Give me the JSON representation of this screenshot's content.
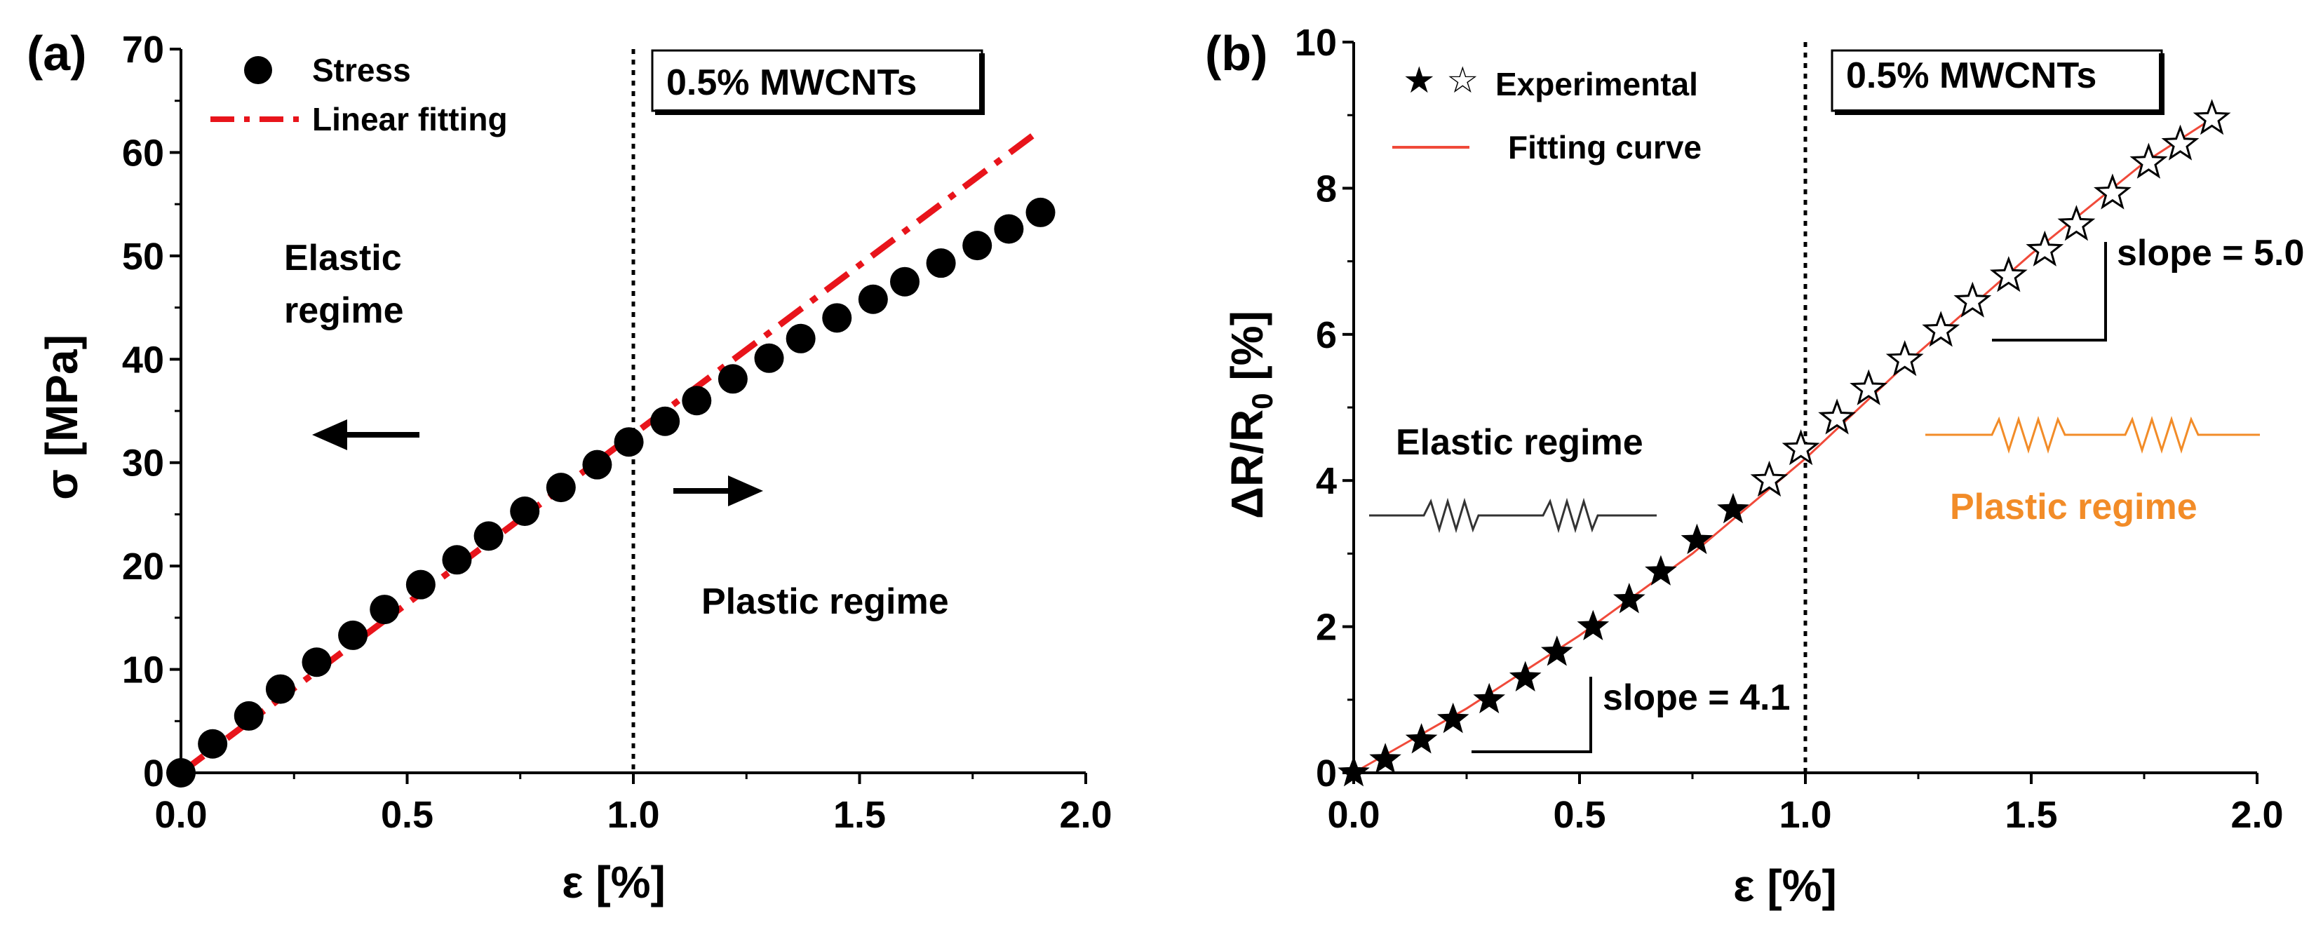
{
  "chart_data": [
    {
      "type": "scatter",
      "panel_label": "(a)",
      "box_label": "0.5% MWCNTs",
      "xlabel": "ε [%]",
      "ylabel": "σ [MPa]",
      "xlim": [
        0,
        2
      ],
      "ylim": [
        0,
        70
      ],
      "xticks": [
        "0.0",
        "0.5",
        "1.0",
        "1.5",
        "2.0"
      ],
      "yticks": [
        "0",
        "10",
        "20",
        "30",
        "40",
        "50",
        "60",
        "70"
      ],
      "divider_x": 1.0,
      "legend": [
        "Stress",
        "Linear fitting"
      ],
      "annotations": {
        "elastic_1": "Elastic",
        "elastic_2": "regime",
        "plastic": "Plastic regime"
      },
      "series": [
        {
          "name": "Stress",
          "x": [
            0.0,
            0.07,
            0.15,
            0.22,
            0.3,
            0.38,
            0.45,
            0.53,
            0.61,
            0.68,
            0.76,
            0.84,
            0.92,
            0.99,
            1.07,
            1.14,
            1.22,
            1.3,
            1.37,
            1.45,
            1.53,
            1.6,
            1.68,
            1.76,
            1.83,
            1.9
          ],
          "y": [
            0,
            2.8,
            5.5,
            8.1,
            10.7,
            13.3,
            15.8,
            18.2,
            20.6,
            22.9,
            25.3,
            27.6,
            29.8,
            32.0,
            34.0,
            36.0,
            38.1,
            40.1,
            42.0,
            44.0,
            45.8,
            47.5,
            49.3,
            51.0,
            52.6,
            54.2
          ]
        },
        {
          "name": "Linear fitting",
          "x": [
            0.0,
            1.9
          ],
          "y": [
            0,
            62.2
          ]
        }
      ],
      "colors": {
        "marker": "#000000",
        "fit": "#e8141b"
      }
    },
    {
      "type": "scatter",
      "panel_label": "(b)",
      "box_label": "0.5% MWCNTs",
      "xlabel": "ε [%]",
      "ylabel_main": "ΔR/R",
      "ylabel_sub": "0",
      "ylabel_unit": " [%]",
      "xlim": [
        0,
        2
      ],
      "ylim": [
        0,
        10
      ],
      "xticks": [
        "0.0",
        "0.5",
        "1.0",
        "1.5",
        "2.0"
      ],
      "yticks": [
        "0",
        "2",
        "4",
        "6",
        "8",
        "10"
      ],
      "divider_x": 1.0,
      "legend": [
        "Experimental",
        "Fitting curve"
      ],
      "annotations": {
        "elastic": "Elastic regime",
        "plastic": "Plastic regime",
        "slope_low": "slope = 4.1",
        "slope_high": "slope = 5.0"
      },
      "series": [
        {
          "name": "Experimental (elastic, filled)",
          "x": [
            0.0,
            0.07,
            0.15,
            0.22,
            0.3,
            0.38,
            0.45,
            0.53,
            0.61,
            0.68,
            0.76,
            0.84
          ],
          "y": [
            0.0,
            0.18,
            0.45,
            0.73,
            1.0,
            1.3,
            1.65,
            2.0,
            2.37,
            2.75,
            3.18,
            3.6
          ]
        },
        {
          "name": "Experimental (plastic, open)",
          "x": [
            0.92,
            0.99,
            1.07,
            1.14,
            1.22,
            1.3,
            1.37,
            1.45,
            1.53,
            1.6,
            1.68,
            1.76,
            1.83,
            1.9
          ],
          "y": [
            4.0,
            4.43,
            4.85,
            5.25,
            5.65,
            6.05,
            6.45,
            6.8,
            7.15,
            7.5,
            7.93,
            8.35,
            8.6,
            8.95
          ]
        },
        {
          "name": "Fitting curve",
          "x": [
            0.0,
            0.25,
            0.5,
            0.75,
            1.0,
            1.25,
            1.5,
            1.75,
            1.9
          ],
          "y": [
            0.0,
            0.88,
            1.88,
            3.0,
            4.3,
            5.75,
            7.1,
            8.35,
            8.95
          ]
        }
      ],
      "colors": {
        "marker": "#000000",
        "fit": "#f04a3a",
        "plastic_text": "#f28c28",
        "plastic_spring": "#f28c28",
        "elastic_spring": "#333333"
      }
    }
  ]
}
